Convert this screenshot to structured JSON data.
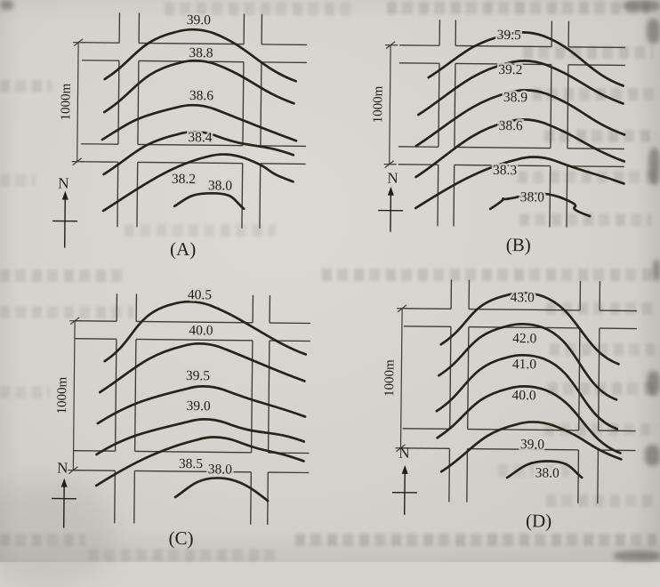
{
  "colors": {
    "paper": "#d5d2cd",
    "contour_ink": "#272319",
    "street_line": "#3f3b34",
    "label_text": "#221d17"
  },
  "panels": [
    {
      "id": "A",
      "letter_label": "(A)",
      "scale_label": "1000m",
      "north_label": "N",
      "contour_labels": [
        "39.0",
        "38.8",
        "38.6",
        "38.4",
        "38.2",
        "38.0"
      ]
    },
    {
      "id": "B",
      "letter_label": "(B)",
      "scale_label": "1000m",
      "north_label": "N",
      "contour_labels": [
        "39.5",
        "39.2",
        "38.9",
        "38.6",
        "38.3",
        "38.0"
      ]
    },
    {
      "id": "C",
      "letter_label": "(C)",
      "scale_label": "1000m",
      "north_label": "N",
      "contour_labels": [
        "40.5",
        "40.0",
        "39.5",
        "39.0",
        "38.5",
        "38.0"
      ]
    },
    {
      "id": "D",
      "letter_label": "(D)",
      "scale_label": "1000m",
      "north_label": "N",
      "contour_labels": [
        "43.0",
        "42.0",
        "41.0",
        "40.0",
        "39.0",
        "38.0"
      ]
    }
  ],
  "chart_data": [
    {
      "type": "line",
      "panel": "(A)",
      "contour_values_m": [
        39.0,
        38.8,
        38.6,
        38.4,
        38.2,
        38.0
      ],
      "contour_interval_m": 0.2,
      "scale_label": "1000m",
      "north_label": "N"
    },
    {
      "type": "line",
      "panel": "(B)",
      "contour_values_m": [
        39.5,
        39.2,
        38.9,
        38.6,
        38.3,
        38.0
      ],
      "contour_interval_m": 0.3,
      "scale_label": "1000m",
      "north_label": "N"
    },
    {
      "type": "line",
      "panel": "(C)",
      "contour_values_m": [
        40.5,
        40.0,
        39.5,
        39.0,
        38.5,
        38.0
      ],
      "contour_interval_m": 0.5,
      "scale_label": "1000m",
      "north_label": "N"
    },
    {
      "type": "line",
      "panel": "(D)",
      "contour_values_m": [
        43.0,
        42.0,
        41.0,
        40.0,
        39.0,
        38.0
      ],
      "contour_interval_m": 1.0,
      "scale_label": "1000m",
      "north_label": "N"
    }
  ]
}
